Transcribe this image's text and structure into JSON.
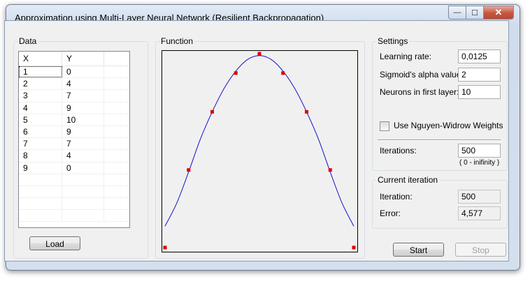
{
  "window": {
    "title": "Approximation using Multi-Layer Neural Network (Resilient Backpropagation)",
    "min_glyph": "—",
    "max_glyph": "☐",
    "close_glyph": "✕"
  },
  "data_group": {
    "label": "Data",
    "columns": [
      "X",
      "Y"
    ],
    "rows": [
      {
        "x": "1",
        "y": "0"
      },
      {
        "x": "2",
        "y": "4"
      },
      {
        "x": "3",
        "y": "7"
      },
      {
        "x": "4",
        "y": "9"
      },
      {
        "x": "5",
        "y": "10"
      },
      {
        "x": "6",
        "y": "9"
      },
      {
        "x": "7",
        "y": "7"
      },
      {
        "x": "8",
        "y": "4"
      },
      {
        "x": "9",
        "y": "0"
      }
    ],
    "load_label": "Load"
  },
  "function_group": {
    "label": "Function"
  },
  "chart_data": {
    "type": "scatter",
    "title": "",
    "xlabel": "",
    "ylabel": "",
    "grid": false,
    "xlim": [
      1,
      9
    ],
    "ylim": [
      0,
      10
    ],
    "series": [
      {
        "kind": "points",
        "color": "#e00000",
        "x": [
          1,
          2,
          3,
          4,
          5,
          6,
          7,
          8,
          9
        ],
        "y": [
          0,
          4,
          7,
          9,
          10,
          9,
          7,
          4,
          0
        ]
      },
      {
        "kind": "line",
        "color": "#1010c8",
        "x": [
          1,
          1.5,
          2,
          2.5,
          3,
          3.5,
          4,
          4.5,
          5,
          5.5,
          6,
          6.5,
          7,
          7.5,
          8,
          8.5,
          9
        ],
        "y": [
          1.1,
          2.3,
          3.9,
          5.6,
          7.0,
          8.2,
          9.1,
          9.7,
          9.9,
          9.7,
          9.1,
          8.2,
          7.0,
          5.6,
          3.9,
          2.3,
          1.1
        ]
      }
    ]
  },
  "settings": {
    "label": "Settings",
    "learning_rate_label": "Learning rate:",
    "learning_rate_value": "0,0125",
    "alpha_label": "Sigmoid's alpha value:",
    "alpha_value": "2",
    "neurons_label": "Neurons in first layer:",
    "neurons_value": "10",
    "nguyen_label": "Use Nguyen-Widrow Weights",
    "nguyen_checked": false,
    "iterations_label": "Iterations:",
    "iterations_value": "500",
    "iterations_hint": "( 0 - inifinity )"
  },
  "current": {
    "label": "Current iteration",
    "iteration_label": "Iteration:",
    "iteration_value": "500",
    "error_label": "Error:",
    "error_value": "4,577"
  },
  "actions": {
    "start_label": "Start",
    "stop_label": "Stop"
  }
}
